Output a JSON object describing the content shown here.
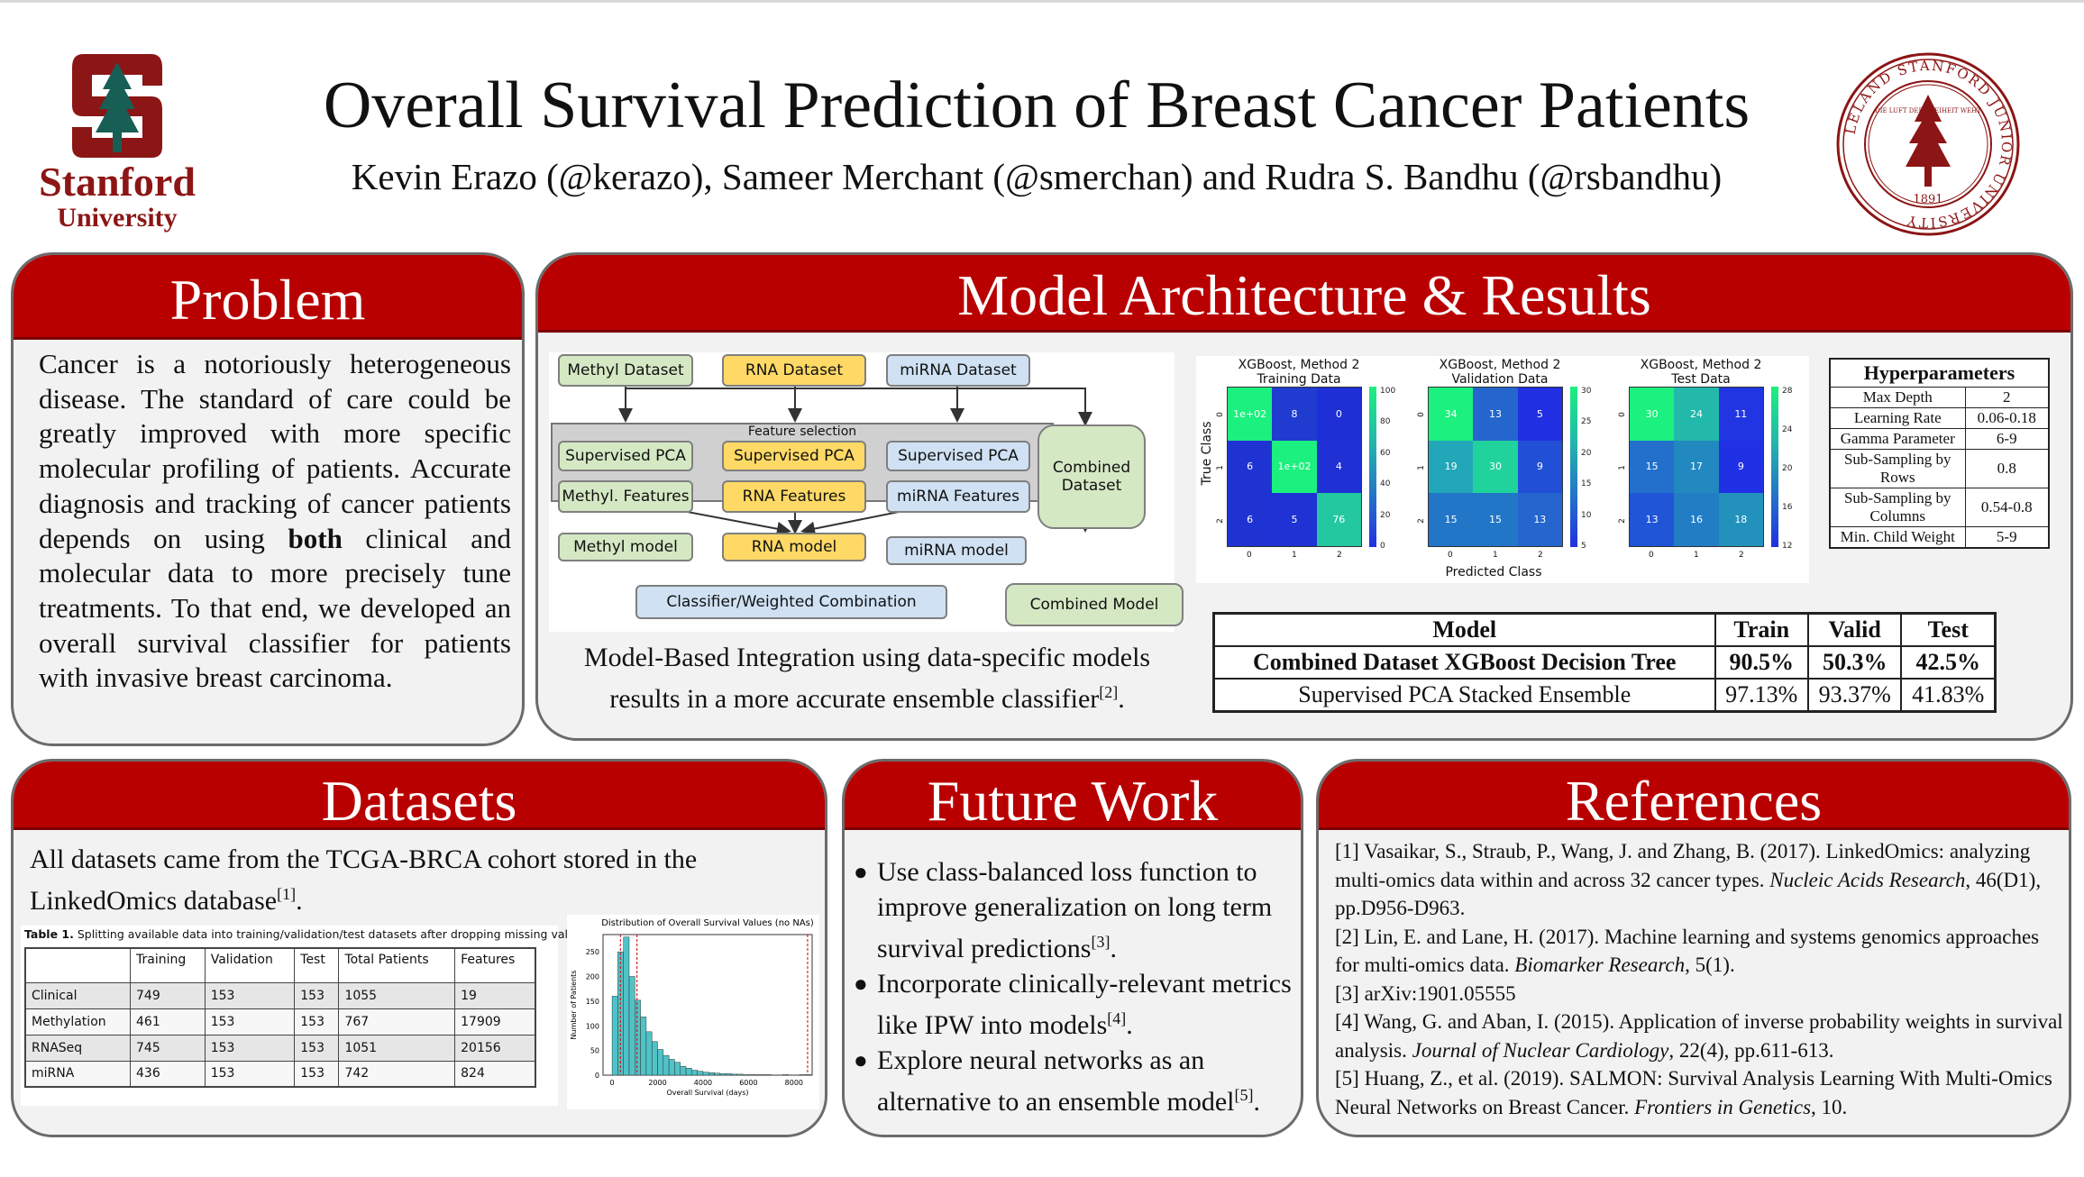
{
  "header": {
    "title": "Overall Survival Prediction of Breast Cancer Patients",
    "authors": "Kevin Erazo (@kerazo), Sameer Merchant (@smerchan) and Rudra S. Bandhu (@rsbandhu)",
    "logo_word1": "Stanford",
    "logo_word2": "University",
    "seal_text": "LELAND STANFORD JUNIOR UNIVERSITY",
    "seal_motto": "DIE LUFT DER FREIHEIT WEHT",
    "seal_year": "1891"
  },
  "problem": {
    "heading": "Problem",
    "text_before": "Cancer is a notoriously heterogeneous disease. The standard of care could be greatly improved with more specific molecular profiling of patients. Accurate diagnosis and tracking of cancer patients depends on using ",
    "text_bold": "both",
    "text_after": " clinical and molecular data to more precisely tune treatments. To that end, we developed an overall survival classifier for patients with invasive breast carcinoma."
  },
  "model": {
    "heading": "Model Architecture & Results",
    "diagram": {
      "methyl_dataset": "Methyl Dataset",
      "rna_dataset": "RNA Dataset",
      "mirna_dataset": "miRNA Dataset",
      "feature_selection": "Feature selection",
      "sup_pca_1": "Supervised PCA",
      "sup_pca_2": "Supervised PCA",
      "sup_pca_3": "Supervised PCA",
      "methyl_features": "Methyl. Features",
      "rna_features": "RNA Features",
      "mirna_features": "miRNA Features",
      "methyl_model": "Methyl model",
      "rna_model": "RNA model",
      "mirna_model": "miRNA model",
      "classifier": "Classifier/Weighted Combination",
      "combined_dataset": "Combined Dataset",
      "combined_model": "Combined Model"
    },
    "caption": "Model-Based Integration using data-specific models results in a more accurate ensemble classifier",
    "caption_ref": "[2]",
    "caption_end": ".",
    "confusion": {
      "true_label": "True Class",
      "pred_label": "Predicted Class",
      "tick_labels": [
        "0",
        "1",
        "2"
      ],
      "matrices": [
        {
          "title1": "XGBoost, Method 2",
          "title2": "Training Data",
          "cells": [
            "1e+02",
            "8",
            "0",
            "6",
            "1e+02",
            "4",
            "6",
            "5",
            "76"
          ],
          "colors": [
            "#1cf07e",
            "#1f3bd0",
            "#1f2fd6",
            "#1f33d3",
            "#1cf07e",
            "#1f30d4",
            "#1f33d3",
            "#1f32d3",
            "#24c8a0"
          ],
          "scale": [
            "100",
            "80",
            "60",
            "40",
            "20",
            "0"
          ]
        },
        {
          "title1": "XGBoost, Method 2",
          "title2": "Validation Data",
          "cells": [
            "34",
            "13",
            "5",
            "19",
            "30",
            "9",
            "15",
            "15",
            "13"
          ],
          "colors": [
            "#1cf07e",
            "#2466ce",
            "#2130e2",
            "#22a7b8",
            "#20d39c",
            "#2150d6",
            "#2276c7",
            "#2276c7",
            "#2466ce"
          ],
          "scale": [
            "30",
            "25",
            "20",
            "15",
            "10",
            "5"
          ]
        },
        {
          "title1": "XGBoost, Method 2",
          "title2": "Test Data",
          "cells": [
            "30",
            "24",
            "11",
            "15",
            "17",
            "9",
            "13",
            "16",
            "18"
          ],
          "colors": [
            "#1cf07e",
            "#22b9aa",
            "#2136e2",
            "#2270cb",
            "#2288c0",
            "#2030e4",
            "#2155d8",
            "#227dc4",
            "#2292bd"
          ],
          "scale": [
            "28",
            "24",
            "20",
            "16",
            "12"
          ]
        }
      ]
    },
    "hyper": {
      "title": "Hyperparameters",
      "rows": [
        {
          "name": "Max Depth",
          "value": "2"
        },
        {
          "name": "Learning Rate",
          "value": "0.06-0.18"
        },
        {
          "name": "Gamma Parameter",
          "value": "6-9"
        },
        {
          "name": "Sub-Sampling by Rows",
          "value": "0.8"
        },
        {
          "name": "Sub-Sampling by Columns",
          "value": "0.54-0.8"
        },
        {
          "name": "Min. Child Weight",
          "value": "5-9"
        }
      ]
    },
    "results": {
      "headers": [
        "Model",
        "Train",
        "Valid",
        "Test"
      ],
      "rows": [
        {
          "model": "Combined Dataset XGBoost Decision Tree",
          "train": "90.5%",
          "valid": "50.3%",
          "test": "42.5%"
        },
        {
          "model": "Supervised PCA Stacked Ensemble",
          "train": "97.13%",
          "valid": "93.37%",
          "test": "41.83%"
        }
      ]
    }
  },
  "datasets": {
    "heading": "Datasets",
    "text": "All datasets came from the TCGA-BRCA cohort stored in the LinkedOmics database",
    "text_ref": "[1]",
    "text_end": ".",
    "table_caption_bold": "Table 1.",
    "table_caption": " Splitting available data into training/validation/test datasets after dropping missing values.",
    "table_headers": [
      "",
      "Training",
      "Validation",
      "Test",
      "Total Patients",
      "Features"
    ],
    "table_rows": [
      [
        "Clinical",
        "749",
        "153",
        "153",
        "1055",
        "19"
      ],
      [
        "Methylation",
        "461",
        "153",
        "153",
        "767",
        "17909"
      ],
      [
        "RNASeq",
        "745",
        "153",
        "153",
        "1051",
        "20156"
      ],
      [
        "miRNA",
        "436",
        "153",
        "153",
        "742",
        "824"
      ]
    ],
    "histogram": {
      "title": "Distribution of Overall Survival Values (no NAs)",
      "xlabel": "Overall Survival (days)",
      "ylabel": "Number of Patients",
      "x_ticks": [
        "0",
        "2000",
        "4000",
        "6000",
        "8000"
      ],
      "y_ticks": [
        "0",
        "50",
        "100",
        "150",
        "200",
        "250"
      ]
    }
  },
  "chart_data": {
    "type": "bar",
    "title": "Distribution of Overall Survival Values (no NAs)",
    "xlabel": "Overall Survival (days)",
    "ylabel": "Number of Patients",
    "xlim": [
      -400,
      8800
    ],
    "ylim": [
      0,
      285
    ],
    "bin_width": 250,
    "bin_starts": [
      0,
      250,
      500,
      750,
      1000,
      1250,
      1500,
      1750,
      2000,
      2250,
      2500,
      2750,
      3000,
      3250,
      3500,
      3750,
      4000,
      4250,
      4500,
      4750,
      5000,
      5250,
      5500,
      5750,
      6000,
      6250,
      6500,
      6750,
      7000,
      7250,
      7500,
      7750,
      8000,
      8250,
      8500
    ],
    "values": [
      160,
      250,
      280,
      200,
      152,
      118,
      88,
      68,
      52,
      40,
      32,
      26,
      18,
      14,
      10,
      8,
      6,
      5,
      4,
      3,
      3,
      2,
      2,
      1,
      1,
      1,
      1,
      1,
      0,
      0,
      1,
      0,
      0,
      1,
      1
    ],
    "threshold_lines_days": [
      365,
      1095,
      8600
    ]
  },
  "future": {
    "heading": "Future Work",
    "items": [
      {
        "text": "Use class-balanced loss function to improve generalization on long term survival predictions",
        "ref": "[3]",
        "end": "."
      },
      {
        "text": "Incorporate clinically-relevant metrics like IPW into models",
        "ref": "[4]",
        "end": "."
      },
      {
        "text": "Explore neural networks as an alternative to an ensemble model",
        "ref": "[5]",
        "end": "."
      }
    ]
  },
  "references": {
    "heading": "References",
    "items": [
      {
        "pre": "[1] Vasaikar, S., Straub, P., Wang, J. and Zhang, B. (2017). LinkedOmics: analyzing multi-omics data within and across 32 cancer types. ",
        "journal": "Nucleic Acids Research",
        "post": ", 46(D1), pp.D956-D963."
      },
      {
        "pre": "[2] Lin, E. and Lane, H. (2017). Machine learning and systems genomics approaches for multi-omics data. ",
        "journal": "Biomarker Research",
        "post": ", 5(1)."
      },
      {
        "pre": "[3] arXiv:1901.05555",
        "journal": "",
        "post": ""
      },
      {
        "pre": "[4] Wang, G. and Aban, I. (2015). Application of inverse probability weights in survival analysis. ",
        "journal": "Journal of Nuclear Cardiology",
        "post": ", 22(4), pp.611-613."
      },
      {
        "pre": "[5] Huang, Z., et al. (2019). SALMON: Survival Analysis Learning With Multi-Omics Neural Networks on Breast Cancer. ",
        "journal": "Frontiers in Genetics",
        "post": ", 10."
      }
    ]
  }
}
